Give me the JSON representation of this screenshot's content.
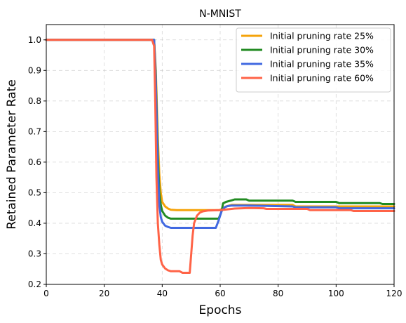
{
  "chart_data": {
    "type": "line",
    "title": "N-MNIST",
    "xlabel": "Epochs",
    "ylabel": "Retained Parameter  Rate",
    "xlim": [
      0,
      120
    ],
    "ylim": [
      0.2,
      1.05
    ],
    "xticks": [
      "0",
      "20",
      "40",
      "60",
      "80",
      "100",
      "120"
    ],
    "yticks": [
      "0.2",
      "0.3",
      "0.4",
      "0.5",
      "0.6",
      "0.7",
      "0.8",
      "0.9",
      "1.0"
    ],
    "grid": true,
    "legend_position": "top-right",
    "series": [
      {
        "name": "Initial pruning rate 25%",
        "color": "#f5a30a",
        "points": [
          [
            0,
            1.0
          ],
          [
            36.5,
            1.0
          ],
          [
            37.2,
            1.0
          ],
          [
            37.8,
            0.9
          ],
          [
            38.5,
            0.68
          ],
          [
            39,
            0.56
          ],
          [
            39.5,
            0.5
          ],
          [
            40,
            0.47
          ],
          [
            41,
            0.455
          ],
          [
            42,
            0.448
          ],
          [
            43,
            0.444
          ],
          [
            45,
            0.443
          ],
          [
            60,
            0.443
          ],
          [
            62,
            0.455
          ],
          [
            64,
            0.46
          ],
          [
            70,
            0.46
          ],
          [
            85,
            0.46
          ],
          [
            86,
            0.455
          ],
          [
            120,
            0.455
          ]
        ]
      },
      {
        "name": "Initial pruning rate 30%",
        "color": "#228b22",
        "points": [
          [
            0,
            1.0
          ],
          [
            36.5,
            1.0
          ],
          [
            37.2,
            1.0
          ],
          [
            37.8,
            0.88
          ],
          [
            38.5,
            0.62
          ],
          [
            39,
            0.5
          ],
          [
            39.5,
            0.46
          ],
          [
            40,
            0.44
          ],
          [
            41,
            0.425
          ],
          [
            42,
            0.418
          ],
          [
            43,
            0.415
          ],
          [
            48,
            0.415
          ],
          [
            59.5,
            0.415
          ],
          [
            60.5,
            0.44
          ],
          [
            61,
            0.465
          ],
          [
            62,
            0.47
          ],
          [
            64,
            0.475
          ],
          [
            65,
            0.478
          ],
          [
            69,
            0.478
          ],
          [
            70,
            0.474
          ],
          [
            85,
            0.474
          ],
          [
            86,
            0.47
          ],
          [
            100,
            0.47
          ],
          [
            101,
            0.466
          ],
          [
            115,
            0.466
          ],
          [
            116,
            0.463
          ],
          [
            120,
            0.463
          ]
        ]
      },
      {
        "name": "Initial pruning rate 35%",
        "color": "#4169e1",
        "points": [
          [
            0,
            1.0
          ],
          [
            36.5,
            1.0
          ],
          [
            37.2,
            1.0
          ],
          [
            37.8,
            0.86
          ],
          [
            38.5,
            0.58
          ],
          [
            39,
            0.46
          ],
          [
            39.5,
            0.42
          ],
          [
            40,
            0.405
          ],
          [
            41,
            0.392
          ],
          [
            42,
            0.388
          ],
          [
            43,
            0.385
          ],
          [
            58.5,
            0.385
          ],
          [
            59.5,
            0.41
          ],
          [
            60.5,
            0.44
          ],
          [
            61.5,
            0.452
          ],
          [
            62.5,
            0.456
          ],
          [
            64,
            0.458
          ],
          [
            70,
            0.458
          ],
          [
            85,
            0.455
          ],
          [
            86,
            0.452
          ],
          [
            100,
            0.452
          ],
          [
            101,
            0.449
          ],
          [
            120,
            0.449
          ]
        ]
      },
      {
        "name": "Initial pruning rate 60%",
        "color": "#ff6347",
        "points": [
          [
            0,
            1.0
          ],
          [
            36.5,
            1.0
          ],
          [
            37.2,
            0.98
          ],
          [
            37.6,
            0.8
          ],
          [
            38,
            0.55
          ],
          [
            38.5,
            0.4
          ],
          [
            39,
            0.33
          ],
          [
            39.5,
            0.28
          ],
          [
            40,
            0.265
          ],
          [
            41,
            0.252
          ],
          [
            42,
            0.246
          ],
          [
            43,
            0.243
          ],
          [
            46,
            0.243
          ],
          [
            47,
            0.238
          ],
          [
            49.5,
            0.238
          ],
          [
            50,
            0.3
          ],
          [
            50.5,
            0.36
          ],
          [
            51,
            0.4
          ],
          [
            52,
            0.425
          ],
          [
            53,
            0.435
          ],
          [
            54,
            0.439
          ],
          [
            56,
            0.442
          ],
          [
            60,
            0.443
          ],
          [
            62,
            0.445
          ],
          [
            65,
            0.448
          ],
          [
            70,
            0.45
          ],
          [
            75,
            0.449
          ],
          [
            76,
            0.447
          ],
          [
            90,
            0.447
          ],
          [
            91,
            0.443
          ],
          [
            105,
            0.443
          ],
          [
            106,
            0.44
          ],
          [
            120,
            0.44
          ]
        ]
      }
    ]
  }
}
